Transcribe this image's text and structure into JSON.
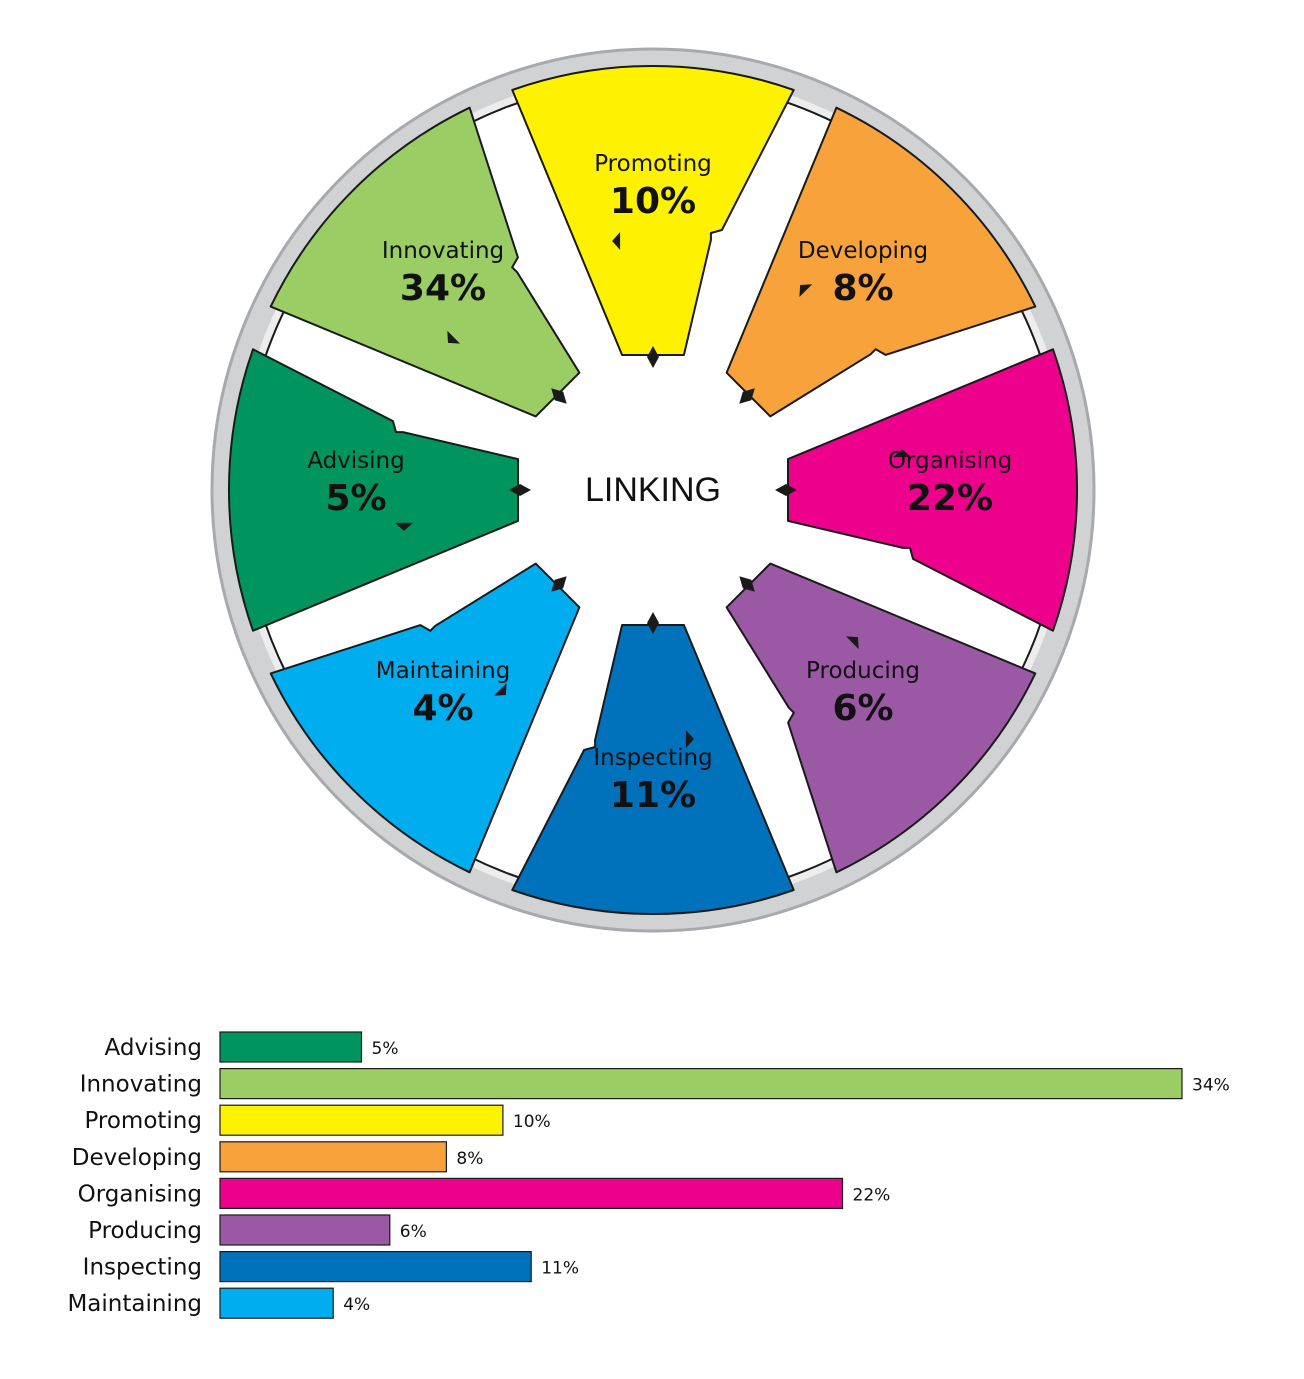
{
  "chart_data": [
    {
      "type": "pie",
      "center_label": "LINKING",
      "segments": [
        {
          "label": "Promoting",
          "value": 10,
          "display": "10%",
          "color": "#FFF200"
        },
        {
          "label": "Developing",
          "value": 8,
          "display": "8%",
          "color": "#F7A23B"
        },
        {
          "label": "Organising",
          "value": 22,
          "display": "22%",
          "color": "#EC008C"
        },
        {
          "label": "Producing",
          "value": 6,
          "display": "6%",
          "color": "#9B59A5"
        },
        {
          "label": "Inspecting",
          "value": 11,
          "display": "11%",
          "color": "#0072BC"
        },
        {
          "label": "Maintaining",
          "value": 4,
          "display": "4%",
          "color": "#00AEEF"
        },
        {
          "label": "Advising",
          "value": 5,
          "display": "5%",
          "color": "#00955F"
        },
        {
          "label": "Innovating",
          "value": 34,
          "display": "34%",
          "color": "#9BCD65"
        }
      ]
    },
    {
      "type": "bar",
      "orientation": "horizontal",
      "categories": [
        "Advising",
        "Innovating",
        "Promoting",
        "Developing",
        "Organising",
        "Producing",
        "Inspecting",
        "Maintaining"
      ],
      "values": [
        5,
        34,
        10,
        8,
        22,
        6,
        11,
        4
      ],
      "value_labels": [
        "5%",
        "34%",
        "10%",
        "8%",
        "22%",
        "6%",
        "11%",
        "4%"
      ],
      "colors": [
        "#00955F",
        "#9BCD65",
        "#FFF200",
        "#F7A23B",
        "#EC008C",
        "#9B59A5",
        "#0072BC",
        "#00AEEF"
      ],
      "xlim": [
        0,
        34
      ]
    }
  ]
}
